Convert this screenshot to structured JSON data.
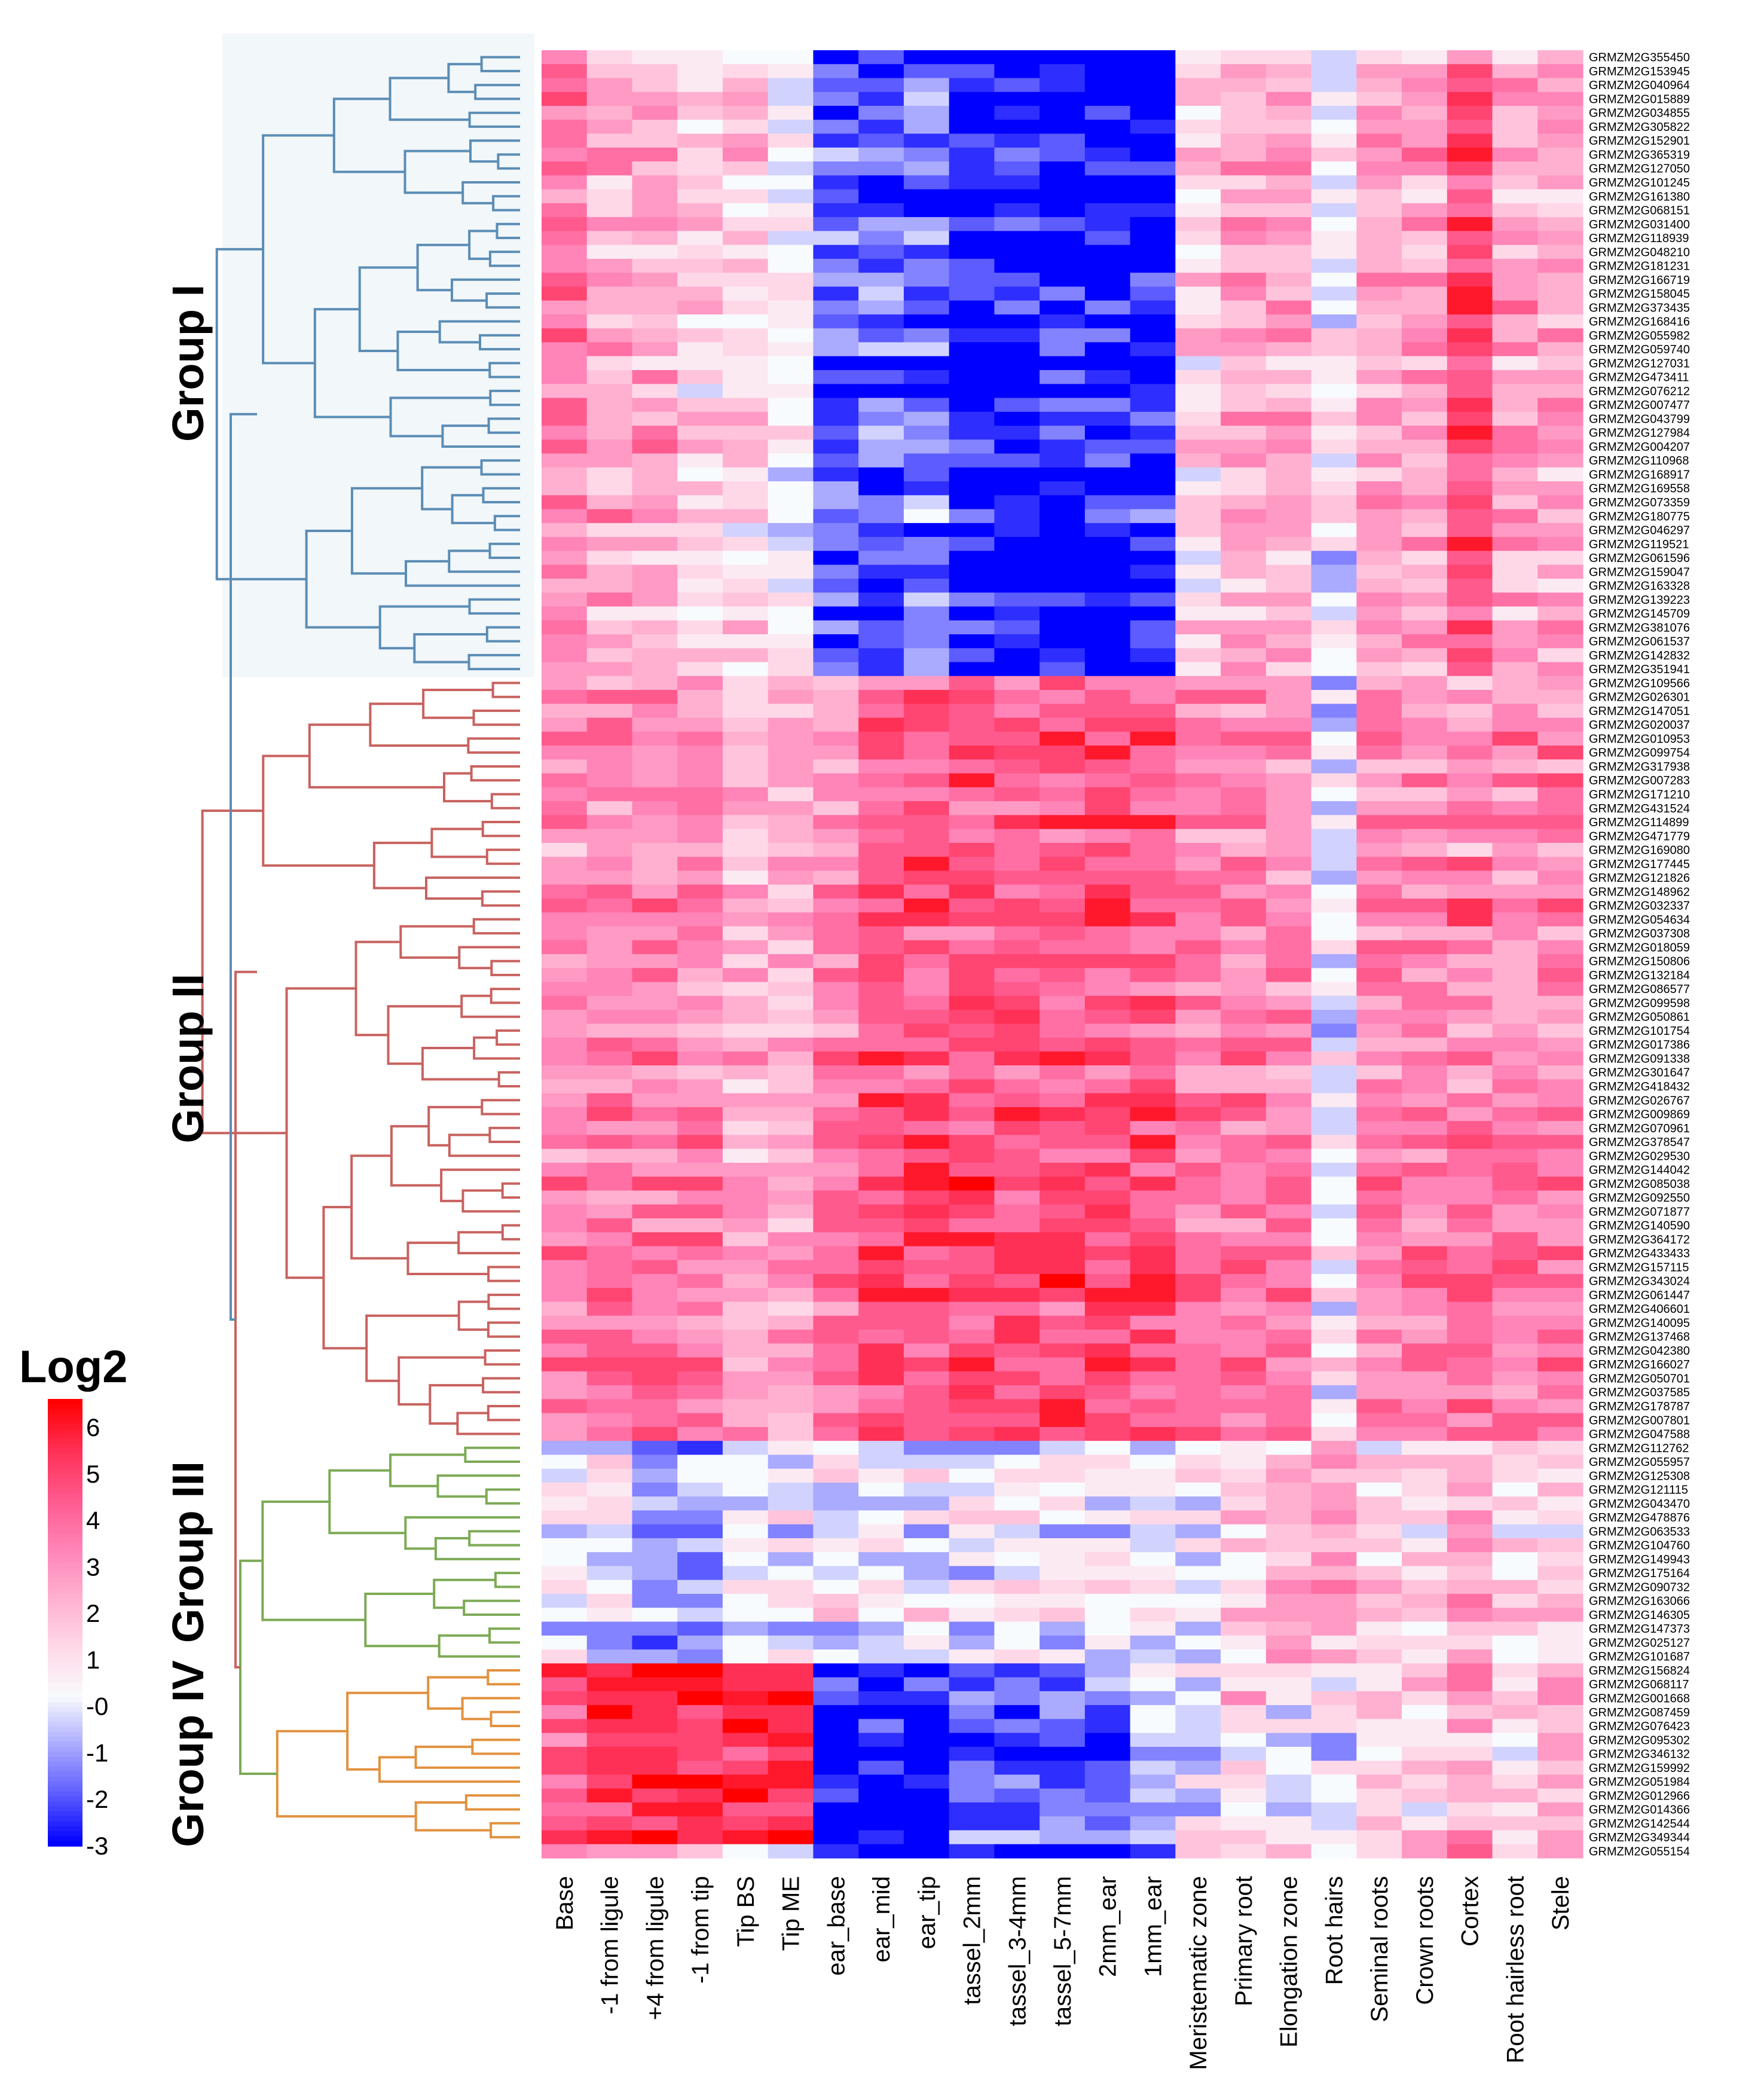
{
  "chart_data": {
    "type": "heatmap",
    "title": "",
    "legend_title": "Log2",
    "legend_ticks": [
      "6",
      "5",
      "4",
      "3",
      "2",
      "1",
      "-0",
      "-1",
      "-2",
      "-3"
    ],
    "value_range": [
      -3,
      6
    ],
    "color_scale": [
      {
        "value": -3,
        "color": "#0000ff"
      },
      {
        "value": -2,
        "color": "#5c5cff"
      },
      {
        "value": -1,
        "color": "#aaaaff"
      },
      {
        "value": 0,
        "color": "#f8fbfd"
      },
      {
        "value": 1,
        "color": "#ffd8e8"
      },
      {
        "value": 2,
        "color": "#ffb0d0"
      },
      {
        "value": 3,
        "color": "#ff84b8"
      },
      {
        "value": 4,
        "color": "#ff5a8e"
      },
      {
        "value": 5,
        "color": "#ff3056"
      },
      {
        "value": 6,
        "color": "#ff0000"
      }
    ],
    "columns": [
      "Base",
      "-1 from ligule",
      "+4 from ligule",
      "-1 from tip",
      "Tip BS",
      "Tip ME",
      "ear_base",
      "ear_mid",
      "ear_tip",
      "tassel_2mm",
      "tassel_3-4mm",
      "tassel_5-7mm",
      "2mm_ear",
      "1mm_ear",
      "Meristematic zone",
      "Primary root",
      "Elongation zone",
      "Root hairs",
      "Seminal roots",
      "Crown roots",
      "Cortex",
      "Root hairless root",
      "Stele"
    ],
    "rows": [
      "GRMZM2G355450",
      "GRMZM2G153945",
      "GRMZM2G040964",
      "GRMZM2G015889",
      "GRMZM2G034855",
      "GRMZM2G305822",
      "GRMZM2G152901",
      "GRMZM2G365319",
      "GRMZM2G127050",
      "GRMZM2G101245",
      "GRMZM2G161380",
      "GRMZM2G068151",
      "GRMZM2G031400",
      "GRMZM2G118939",
      "GRMZM2G048210",
      "GRMZM2G181231",
      "GRMZM2G166719",
      "GRMZM2G158045",
      "GRMZM2G373435",
      "GRMZM2G168416",
      "GRMZM2G055982",
      "GRMZM2G059740",
      "GRMZM2G127031",
      "GRMZM2G473411",
      "GRMZM2G076212",
      "GRMZM2G007477",
      "GRMZM2G043799",
      "GRMZM2G127984",
      "GRMZM2G004207",
      "GRMZM2G110968",
      "GRMZM2G168917",
      "GRMZM2G169558",
      "GRMZM2G073359",
      "GRMZM2G180775",
      "GRMZM2G046297",
      "GRMZM2G119521",
      "GRMZM2G061596",
      "GRMZM2G159047",
      "GRMZM2G163328",
      "GRMZM2G139223",
      "GRMZM2G145709",
      "GRMZM2G381076",
      "GRMZM2G061537",
      "GRMZM2G142832",
      "GRMZM2G351941",
      "GRMZM2G109566",
      "GRMZM2G026301",
      "GRMZM2G147051",
      "GRMZM2G020037",
      "GRMZM2G010953",
      "GRMZM2G099754",
      "GRMZM2G317938",
      "GRMZM2G007283",
      "GRMZM2G171210",
      "GRMZM2G431524",
      "GRMZM2G114899",
      "GRMZM2G471779",
      "GRMZM2G169080",
      "GRMZM2G177445",
      "GRMZM2G121826",
      "GRMZM2G148962",
      "GRMZM2G032337",
      "GRMZM2G054634",
      "GRMZM2G037308",
      "GRMZM2G018059",
      "GRMZM2G150806",
      "GRMZM2G132184",
      "GRMZM2G086577",
      "GRMZM2G099598",
      "GRMZM2G050861",
      "GRMZM2G101754",
      "GRMZM2G017386",
      "GRMZM2G091338",
      "GRMZM2G301647",
      "GRMZM2G418432",
      "GRMZM2G026767",
      "GRMZM2G009869",
      "GRMZM2G070961",
      "GRMZM2G378547",
      "GRMZM2G029530",
      "GRMZM2G144042",
      "GRMZM2G085038",
      "GRMZM2G092550",
      "GRMZM2G071877",
      "GRMZM2G140590",
      "GRMZM2G364172",
      "GRMZM2G433433",
      "GRMZM2G157115",
      "GRMZM2G343024",
      "GRMZM2G061447",
      "GRMZM2G406601",
      "GRMZM2G140095",
      "GRMZM2G137468",
      "GRMZM2G042380",
      "GRMZM2G166027",
      "GRMZM2G050701",
      "GRMZM2G037585",
      "GRMZM2G178787",
      "GRMZM2G007801",
      "GRMZM2G047588",
      "GRMZM2G112762",
      "GRMZM2G055957",
      "GRMZM2G125308",
      "GRMZM2G121115",
      "GRMZM2G043470",
      "GRMZM2G478876",
      "GRMZM2G063533",
      "GRMZM2G104760",
      "GRMZM2G149943",
      "GRMZM2G175164",
      "GRMZM2G090732",
      "GRMZM2G163066",
      "GRMZM2G146305",
      "GRMZM2G147373",
      "GRMZM2G025127",
      "GRMZM2G101687",
      "GRMZM2G156824",
      "GRMZM2G068117",
      "GRMZM2G001668",
      "GRMZM2G087459",
      "GRMZM2G076423",
      "GRMZM2G095302",
      "GRMZM2G346132",
      "GRMZM2G159992",
      "GRMZM2G051984",
      "GRMZM2G012966",
      "GRMZM2G014366",
      "GRMZM2G142544",
      "GRMZM2G349344",
      "GRMZM2G055154"
    ],
    "groups": [
      {
        "name": "Group I",
        "first_row": 0,
        "last_row": 44,
        "color": "#5b8db5"
      },
      {
        "name": "Group II",
        "first_row": 45,
        "last_row": 99,
        "color": "#c8625f"
      },
      {
        "name": "Group III",
        "first_row": 100,
        "last_row": 115,
        "color": "#7caa55"
      },
      {
        "name": "Group IV",
        "first_row": 116,
        "last_row": 128,
        "color": "#e2913f"
      }
    ],
    "column_profiles": [
      [
        3,
        2,
        2,
        1,
        1,
        0,
        -2,
        -2,
        -2,
        -3,
        -3,
        -3,
        -3,
        -3,
        1,
        2,
        2,
        0,
        2,
        2,
        4,
        2,
        2
      ],
      [
        3,
        3,
        3,
        3,
        2,
        2,
        3,
        4,
        4,
        4,
        4,
        4,
        4,
        4,
        3,
        3,
        3,
        0,
        3,
        3,
        3,
        3,
        3
      ],
      [
        0,
        0,
        -1,
        -1,
        0,
        0,
        0,
        0,
        0,
        0,
        0,
        0,
        0,
        0,
        0,
        1,
        2,
        2,
        1,
        1,
        2,
        1,
        1
      ],
      [
        4,
        5,
        5,
        5,
        5,
        5,
        -3,
        -3,
        -3,
        -2,
        -2,
        -2,
        -2,
        -1,
        0,
        1,
        0,
        0,
        1,
        1,
        2,
        1,
        2
      ]
    ],
    "values_note": "Cell values are Log2 expression estimated per group from colour (group column profile plus small per-gene variation); exact per-cell values are not printed in the figure."
  }
}
